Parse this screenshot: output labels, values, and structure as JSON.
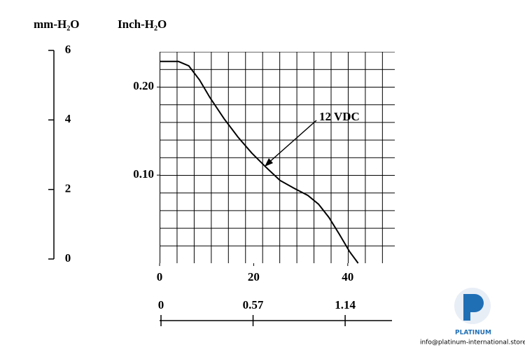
{
  "chart_data": {
    "type": "line",
    "ylabel": "Inch-H₂O",
    "y2label": "mm-H₂O",
    "annotation": "12 VDC",
    "xlim": [
      0,
      50
    ],
    "xticks": [
      0,
      20,
      40
    ],
    "x2lim": [
      0,
      1.43
    ],
    "x2ticks": [
      0,
      0.57,
      1.14
    ],
    "ylim": [
      0,
      0.24
    ],
    "yticks": [
      {
        "value": 0.1,
        "label": "0.10"
      },
      {
        "value": 0.2,
        "label": "0.20"
      }
    ],
    "y2lim": [
      0,
      6
    ],
    "y2ticks": [
      0,
      2,
      4,
      6
    ],
    "grid": true,
    "series": [
      {
        "color": "#000000",
        "x": [
          0,
          4.0,
          6.2,
          8.5,
          10.7,
          13.7,
          16.7,
          19.6,
          22.6,
          25.6,
          28.6,
          31.5,
          33.8,
          36.0,
          38.2,
          40.4,
          42.2
        ],
        "values": [
          0.229,
          0.229,
          0.224,
          0.208,
          0.188,
          0.164,
          0.143,
          0.125,
          0.109,
          0.094,
          0.085,
          0.077,
          0.067,
          0.052,
          0.033,
          0.013,
          0
        ]
      }
    ],
    "logo_text": "PLATINUM",
    "logo_email": "info@platinum-international.store"
  }
}
